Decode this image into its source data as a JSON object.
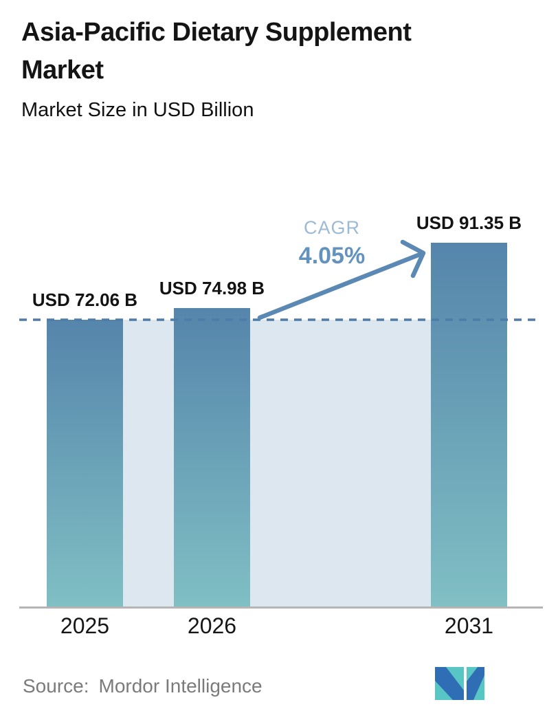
{
  "chart_data": {
    "type": "bar",
    "title": "Asia-Pacific Dietary Supplement Market",
    "title_lines": [
      "Asia-Pacific Dietary Supplement",
      "Market"
    ],
    "subtitle": "Market Size in USD Billion",
    "categories": [
      "2025",
      "2026",
      "2031"
    ],
    "values": [
      72.06,
      74.98,
      91.35
    ],
    "value_labels": [
      "USD 72.06 B",
      "USD 74.98 B",
      "USD 91.35 B"
    ],
    "unit": "USD Billion",
    "baseline_value": 0,
    "gridlines": false,
    "legend": "none",
    "annotations": {
      "cagr_label": "CAGR",
      "cagr_value": "4.05%",
      "dashed_line_value": 72.06,
      "arrow": "from top of 2026 bar to top of 2031 bar"
    },
    "colors": {
      "bar_gradient_top": "#5585ab",
      "bar_gradient_bottom": "#80bfc4",
      "backdrop_fill": "#dce7f0",
      "dashed_line": "#4e7ca8",
      "arrow": "#5b89b4",
      "cagr_label_color": "#9cbad5",
      "cagr_value_color": "#6292bd",
      "axis_line": "#b5b5b5",
      "logo_teal": "#59c6c6",
      "logo_blue": "#2f6db5"
    }
  },
  "footer": {
    "source_label": "Source:",
    "source_name": "Mordor Intelligence",
    "logo": "mordor-intelligence-logo"
  }
}
